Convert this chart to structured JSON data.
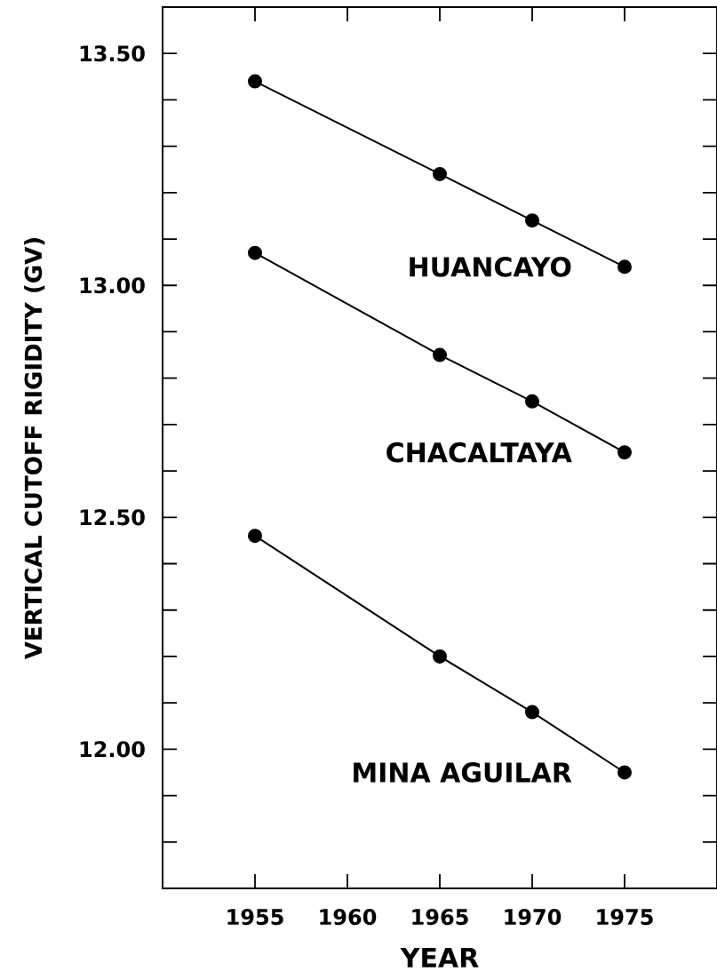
{
  "chart_data": {
    "type": "line",
    "xlabel": "YEAR",
    "ylabel": "VERTICAL CUTOFF RIGIDITY (GV)",
    "x": [
      1955,
      1965,
      1970,
      1975
    ],
    "series": [
      {
        "name": "HUANCAYO",
        "color": "#000000",
        "values": [
          13.44,
          13.24,
          13.14,
          13.04
        ]
      },
      {
        "name": "CHACALTAYA",
        "color": "#000000",
        "values": [
          13.07,
          12.85,
          12.75,
          12.64
        ]
      },
      {
        "name": "MINA AGUILAR",
        "color": "#000000",
        "values": [
          12.46,
          12.2,
          12.08,
          11.95
        ]
      }
    ],
    "xlim": [
      1950,
      1980
    ],
    "xticks": [
      1955,
      1960,
      1965,
      1970,
      1975
    ],
    "ylim": [
      11.7,
      13.6
    ],
    "yticks": [
      {
        "value": 11.8,
        "label": null
      },
      {
        "value": 11.9,
        "label": null
      },
      {
        "value": 12.0,
        "label": "12.00"
      },
      {
        "value": 12.1,
        "label": null
      },
      {
        "value": 12.2,
        "label": null
      },
      {
        "value": 12.3,
        "label": null
      },
      {
        "value": 12.4,
        "label": null
      },
      {
        "value": 12.5,
        "label": "12.50"
      },
      {
        "value": 12.6,
        "label": null
      },
      {
        "value": 12.7,
        "label": null
      },
      {
        "value": 12.8,
        "label": null
      },
      {
        "value": 12.9,
        "label": null
      },
      {
        "value": 13.0,
        "label": "13.00"
      },
      {
        "value": 13.1,
        "label": null
      },
      {
        "value": 13.2,
        "label": null
      },
      {
        "value": 13.3,
        "label": null
      },
      {
        "value": 13.4,
        "label": null
      },
      {
        "value": 13.5,
        "label": "13.50"
      }
    ],
    "marker": "circle",
    "line_style": "solid",
    "legend": false,
    "grid": false
  }
}
